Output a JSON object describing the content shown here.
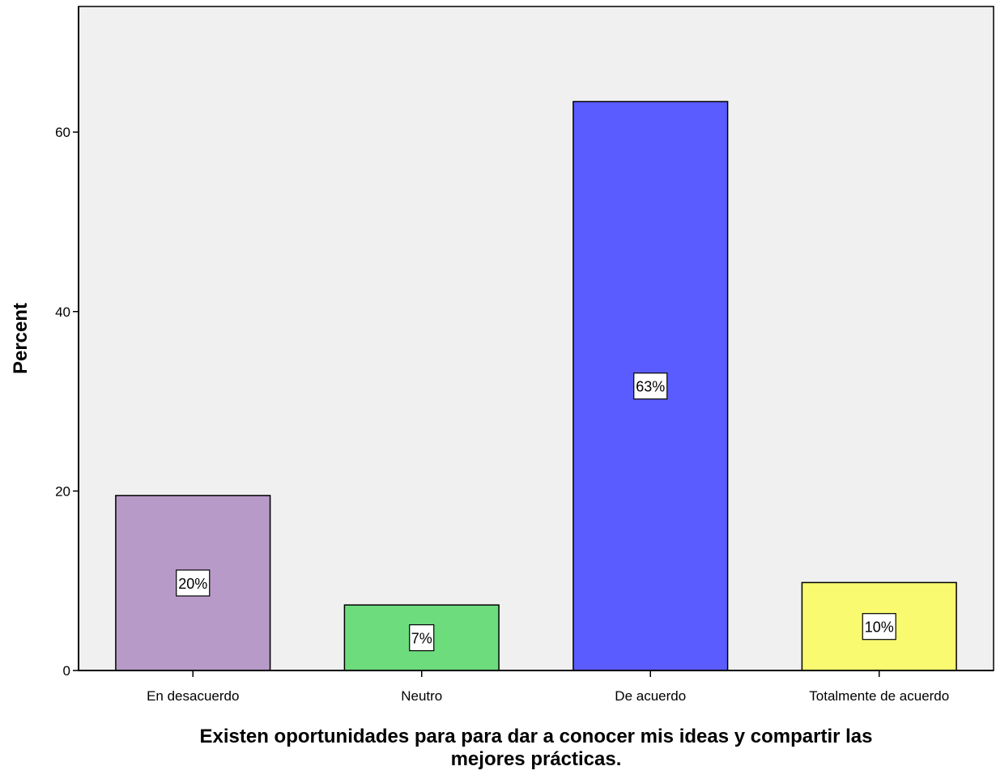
{
  "chart_data": {
    "type": "bar",
    "categories": [
      "En desacuerdo",
      "Neutro",
      "De acuerdo",
      "Totalmente de acuerdo"
    ],
    "values": [
      19.5,
      7.3,
      63.4,
      9.8
    ],
    "data_labels": [
      "20%",
      "7%",
      "63%",
      "10%"
    ],
    "colors": [
      "#b89ac8",
      "#6ddc7d",
      "#5b5cff",
      "#fafa70"
    ],
    "ylabel": "Percent",
    "xlabel_lines": [
      "Existen oportunidades para para dar a conocer mis ideas y compartir las",
      "mejores prácticas."
    ],
    "yticks": [
      0,
      20,
      40,
      60
    ],
    "ylim": [
      0,
      74
    ],
    "grid": false,
    "plot_background": "#f0f0f0"
  }
}
